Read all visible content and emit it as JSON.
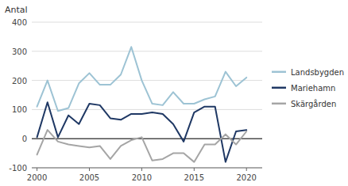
{
  "chart_data": {
    "type": "line",
    "ylabel": "Antal",
    "x": [
      2000,
      2001,
      2002,
      2003,
      2004,
      2005,
      2006,
      2007,
      2008,
      2009,
      2010,
      2011,
      2012,
      2013,
      2014,
      2015,
      2016,
      2017,
      2018,
      2019,
      2020
    ],
    "series": [
      {
        "name": "Landsbygden",
        "color": "#9DC3D4",
        "values": [
          110,
          200,
          95,
          105,
          190,
          225,
          185,
          185,
          220,
          315,
          200,
          120,
          115,
          160,
          120,
          120,
          135,
          145,
          230,
          180,
          210
        ]
      },
      {
        "name": "Mariehamn",
        "color": "#1F3864",
        "values": [
          5,
          125,
          5,
          80,
          50,
          120,
          115,
          70,
          65,
          85,
          85,
          90,
          85,
          50,
          -10,
          90,
          110,
          110,
          -80,
          25,
          30
        ]
      },
      {
        "name": "Skärgården",
        "color": "#A5A5A5",
        "values": [
          -55,
          30,
          -10,
          -20,
          -25,
          -30,
          -25,
          -70,
          -25,
          -5,
          5,
          -75,
          -70,
          -50,
          -50,
          -80,
          -20,
          -20,
          15,
          -20,
          25
        ]
      }
    ],
    "xlim": [
      1999.5,
      2021.5
    ],
    "xticks": [
      2000,
      2005,
      2010,
      2015,
      2020
    ],
    "ylim": [
      -100,
      400
    ],
    "yticks": [
      -100,
      0,
      100,
      200,
      300,
      400
    ],
    "grid": true,
    "legend": "right"
  }
}
